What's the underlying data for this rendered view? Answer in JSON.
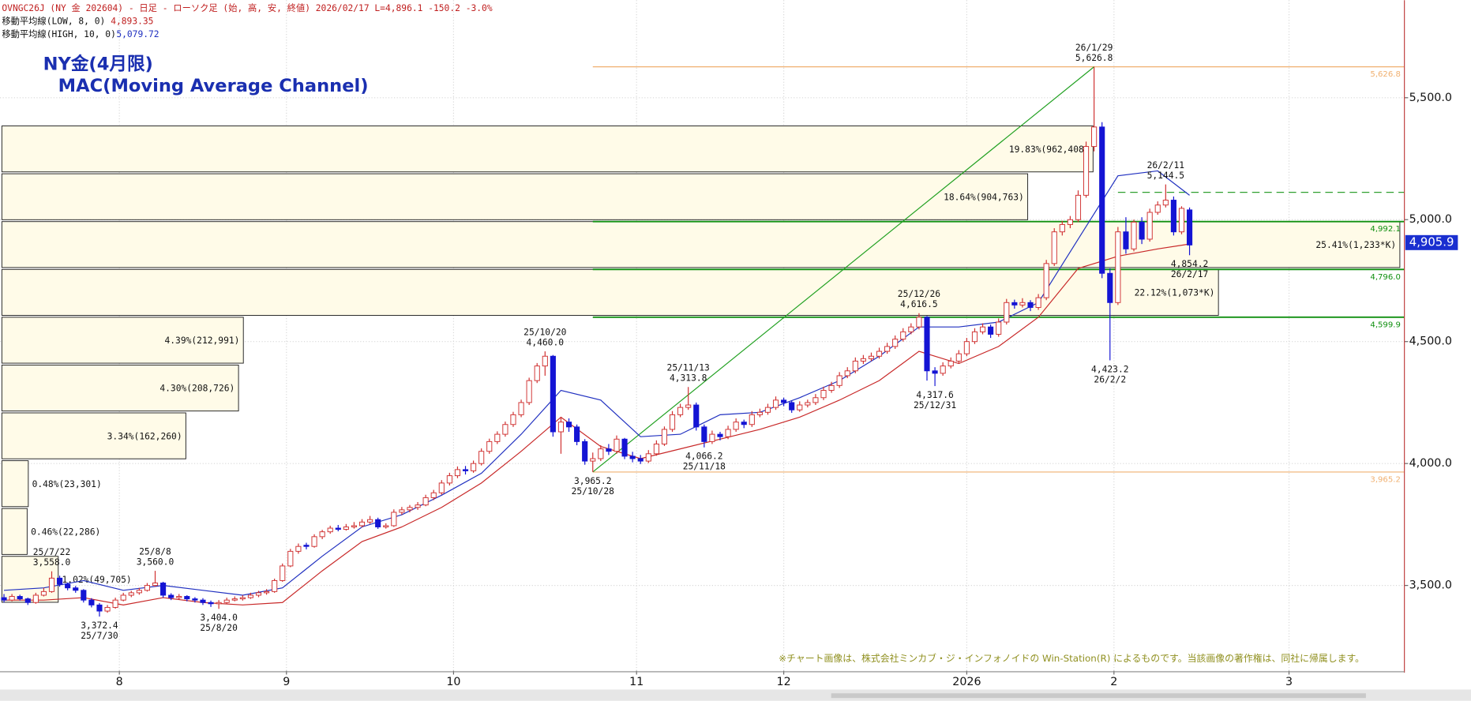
{
  "chart_data": {
    "type": "candlestick",
    "header": "OVNGC26J (NY 金 202604) - 日足 - ローソク足 (始, 高, 安, 終値)   2026/02/17 L=4,896.1 -150.2 -3.0%",
    "title": "NY金(4月限)",
    "subtitle": "MAC(Moving Average Channel)",
    "note": "※チャート画像は、株式会社ミンカブ・ジ・インフォノイドの Win-Station(R) によるものです。当該画像の著作権は、同社に帰属します。",
    "up_color": "#d03030",
    "down_color": "#1414d4",
    "xlim": [
      -0.5,
      176
    ],
    "xticks": [
      {
        "value": 14.5,
        "label": "8"
      },
      {
        "value": 35.5,
        "label": "9"
      },
      {
        "value": 56.5,
        "label": "10"
      },
      {
        "value": 79.5,
        "label": "11"
      },
      {
        "value": 98,
        "label": "12"
      },
      {
        "value": 121,
        "label": "2026"
      },
      {
        "value": 139.5,
        "label": "2"
      },
      {
        "value": 161.5,
        "label": "3"
      }
    ],
    "ylim": [
      3150,
      5900
    ],
    "yticks": [
      {
        "value": 3500,
        "label": "3,500.0"
      },
      {
        "value": 4000,
        "label": "4,000.0"
      },
      {
        "value": 4500,
        "label": "4,500.0"
      },
      {
        "value": 5000,
        "label": "5,000.0"
      },
      {
        "value": 5500,
        "label": "5,500.0"
      }
    ],
    "grid": true,
    "ohlc": [
      [
        3450,
        3465,
        3430,
        3440
      ],
      [
        3440,
        3465,
        3435,
        3455
      ],
      [
        3455,
        3462,
        3438,
        3445
      ],
      [
        3445,
        3450,
        3420,
        3430
      ],
      [
        3430,
        3470,
        3425,
        3460
      ],
      [
        3460,
        3490,
        3455,
        3475
      ],
      [
        3475,
        3558,
        3470,
        3530
      ],
      [
        3530,
        3540,
        3495,
        3505
      ],
      [
        3505,
        3512,
        3480,
        3490
      ],
      [
        3490,
        3498,
        3470,
        3480
      ],
      [
        3480,
        3485,
        3430,
        3440
      ],
      [
        3440,
        3448,
        3410,
        3420
      ],
      [
        3420,
        3428,
        3372.4,
        3395
      ],
      [
        3395,
        3420,
        3388,
        3410
      ],
      [
        3410,
        3450,
        3405,
        3440
      ],
      [
        3440,
        3470,
        3435,
        3460
      ],
      [
        3460,
        3478,
        3452,
        3470
      ],
      [
        3470,
        3490,
        3462,
        3480
      ],
      [
        3480,
        3510,
        3475,
        3500
      ],
      [
        3500,
        3560,
        3495,
        3510
      ],
      [
        3510,
        3515,
        3450,
        3460
      ],
      [
        3460,
        3468,
        3440,
        3450
      ],
      [
        3450,
        3465,
        3443,
        3455
      ],
      [
        3455,
        3460,
        3435,
        3445
      ],
      [
        3445,
        3452,
        3430,
        3440
      ],
      [
        3440,
        3448,
        3420,
        3430
      ],
      [
        3430,
        3438,
        3412,
        3425
      ],
      [
        3425,
        3440,
        3404,
        3430
      ],
      [
        3430,
        3450,
        3424,
        3440
      ],
      [
        3440,
        3455,
        3435,
        3445
      ],
      [
        3445,
        3460,
        3438,
        3450
      ],
      [
        3450,
        3470,
        3445,
        3460
      ],
      [
        3460,
        3478,
        3452,
        3470
      ],
      [
        3470,
        3485,
        3462,
        3475
      ],
      [
        3475,
        3528,
        3470,
        3520
      ],
      [
        3520,
        3590,
        3515,
        3580
      ],
      [
        3580,
        3650,
        3575,
        3640
      ],
      [
        3640,
        3672,
        3630,
        3660
      ],
      [
        3665,
        3675,
        3648,
        3660
      ],
      [
        3660,
        3710,
        3655,
        3700
      ],
      [
        3700,
        3728,
        3690,
        3720
      ],
      [
        3720,
        3745,
        3712,
        3735
      ],
      [
        3735,
        3748,
        3722,
        3730
      ],
      [
        3730,
        3752,
        3725,
        3740
      ],
      [
        3740,
        3760,
        3733,
        3745
      ],
      [
        3745,
        3772,
        3738,
        3760
      ],
      [
        3760,
        3785,
        3752,
        3770
      ],
      [
        3770,
        3778,
        3732,
        3740
      ],
      [
        3740,
        3755,
        3733,
        3745
      ],
      [
        3745,
        3812,
        3740,
        3800
      ],
      [
        3800,
        3822,
        3790,
        3810
      ],
      [
        3810,
        3830,
        3800,
        3820
      ],
      [
        3820,
        3842,
        3810,
        3830
      ],
      [
        3830,
        3872,
        3825,
        3860
      ],
      [
        3860,
        3892,
        3850,
        3880
      ],
      [
        3880,
        3932,
        3872,
        3920
      ],
      [
        3920,
        3962,
        3910,
        3950
      ],
      [
        3950,
        3988,
        3940,
        3975
      ],
      [
        3975,
        3990,
        3955,
        3970
      ],
      [
        3970,
        4012,
        3962,
        4000
      ],
      [
        4000,
        4062,
        3992,
        4050
      ],
      [
        4050,
        4102,
        4040,
        4090
      ],
      [
        4090,
        4132,
        4080,
        4120
      ],
      [
        4120,
        4172,
        4110,
        4160
      ],
      [
        4160,
        4212,
        4150,
        4200
      ],
      [
        4200,
        4262,
        4190,
        4250
      ],
      [
        4250,
        4352,
        4240,
        4340
      ],
      [
        4340,
        4412,
        4330,
        4400
      ],
      [
        4400,
        4460,
        4360,
        4440
      ],
      [
        4440,
        4445,
        4110,
        4130
      ],
      [
        4130,
        4190,
        4040,
        4170
      ],
      [
        4170,
        4185,
        4130,
        4150
      ],
      [
        4150,
        4160,
        4075,
        4090
      ],
      [
        4090,
        4100,
        3995,
        4010
      ],
      [
        4010,
        4045,
        3965.2,
        4020
      ],
      [
        4020,
        4075,
        4010,
        4060
      ],
      [
        4060,
        4080,
        4035,
        4050
      ],
      [
        4050,
        4115,
        4040,
        4100
      ],
      [
        4100,
        4105,
        4018,
        4030
      ],
      [
        4030,
        4048,
        4005,
        4020
      ],
      [
        4020,
        4035,
        3998,
        4010
      ],
      [
        4010,
        4055,
        4002,
        4040
      ],
      [
        4040,
        4095,
        4032,
        4080
      ],
      [
        4080,
        4152,
        4072,
        4140
      ],
      [
        4140,
        4215,
        4130,
        4200
      ],
      [
        4200,
        4245,
        4190,
        4230
      ],
      [
        4230,
        4313.8,
        4220,
        4240
      ],
      [
        4240,
        4250,
        4135,
        4150
      ],
      [
        4150,
        4160,
        4066.2,
        4090
      ],
      [
        4090,
        4135,
        4080,
        4120
      ],
      [
        4120,
        4130,
        4095,
        4110
      ],
      [
        4110,
        4155,
        4100,
        4140
      ],
      [
        4140,
        4185,
        4130,
        4170
      ],
      [
        4170,
        4180,
        4145,
        4160
      ],
      [
        4160,
        4215,
        4150,
        4200
      ],
      [
        4200,
        4225,
        4190,
        4210
      ],
      [
        4210,
        4245,
        4200,
        4230
      ],
      [
        4230,
        4275,
        4220,
        4260
      ],
      [
        4260,
        4270,
        4235,
        4250
      ],
      [
        4250,
        4258,
        4208,
        4220
      ],
      [
        4220,
        4255,
        4212,
        4240
      ],
      [
        4240,
        4262,
        4230,
        4250
      ],
      [
        4250,
        4285,
        4240,
        4270
      ],
      [
        4270,
        4315,
        4260,
        4300
      ],
      [
        4300,
        4335,
        4290,
        4320
      ],
      [
        4320,
        4375,
        4310,
        4360
      ],
      [
        4360,
        4395,
        4350,
        4380
      ],
      [
        4380,
        4435,
        4370,
        4420
      ],
      [
        4420,
        4445,
        4408,
        4430
      ],
      [
        4430,
        4455,
        4420,
        4440
      ],
      [
        4440,
        4475,
        4430,
        4460
      ],
      [
        4460,
        4495,
        4450,
        4480
      ],
      [
        4480,
        4525,
        4470,
        4510
      ],
      [
        4510,
        4555,
        4500,
        4540
      ],
      [
        4540,
        4575,
        4530,
        4560
      ],
      [
        4560,
        4616.5,
        4550,
        4600
      ],
      [
        4600,
        4605,
        4340,
        4380
      ],
      [
        4380,
        4395,
        4317.6,
        4370
      ],
      [
        4370,
        4415,
        4360,
        4400
      ],
      [
        4400,
        4435,
        4390,
        4420
      ],
      [
        4420,
        4465,
        4410,
        4450
      ],
      [
        4450,
        4515,
        4440,
        4500
      ],
      [
        4500,
        4555,
        4490,
        4540
      ],
      [
        4540,
        4575,
        4530,
        4560
      ],
      [
        4560,
        4570,
        4515,
        4530
      ],
      [
        4530,
        4595,
        4520,
        4580
      ],
      [
        4580,
        4675,
        4570,
        4660
      ],
      [
        4660,
        4672,
        4635,
        4650
      ],
      [
        4650,
        4678,
        4640,
        4660
      ],
      [
        4660,
        4670,
        4625,
        4640
      ],
      [
        4640,
        4695,
        4630,
        4680
      ],
      [
        4680,
        4835,
        4670,
        4820
      ],
      [
        4820,
        4965,
        4810,
        4950
      ],
      [
        4950,
        4995,
        4935,
        4980
      ],
      [
        4980,
        5015,
        4965,
        5000
      ],
      [
        5000,
        5120,
        4990,
        5100
      ],
      [
        5100,
        5320,
        5090,
        5300
      ],
      [
        5300,
        5626.8,
        5280,
        5380
      ],
      [
        5380,
        5400,
        4760,
        4780
      ],
      [
        4780,
        4800,
        4423.2,
        4660
      ],
      [
        4660,
        4970,
        4650,
        4950
      ],
      [
        4950,
        5010,
        4860,
        4880
      ],
      [
        4880,
        5000,
        4870,
        4990
      ],
      [
        4990,
        5010,
        4900,
        4920
      ],
      [
        4920,
        5045,
        4910,
        5030
      ],
      [
        5030,
        5075,
        5020,
        5060
      ],
      [
        5060,
        5144.5,
        5050,
        5080
      ],
      [
        5080,
        5095,
        4935,
        4950
      ],
      [
        4950,
        5055,
        4940,
        5046.3
      ],
      [
        5040,
        5050,
        4854.2,
        4896.1
      ]
    ],
    "series": [
      {
        "name": "移動平均線(LOW, 8, 0)",
        "latest_label": "4,893.35",
        "color": "#c82828",
        "x": [
          0,
          5,
          10,
          15,
          20,
          25,
          30,
          35,
          40,
          45,
          50,
          55,
          60,
          65,
          70,
          75,
          80,
          85,
          90,
          95,
          100,
          105,
          110,
          115,
          120,
          125,
          130,
          135,
          140,
          145,
          149
        ],
        "values": [
          3440,
          3440,
          3450,
          3420,
          3450,
          3430,
          3420,
          3430,
          3560,
          3680,
          3740,
          3820,
          3920,
          4050,
          4190,
          4070,
          4020,
          4060,
          4100,
          4140,
          4190,
          4260,
          4340,
          4460,
          4410,
          4480,
          4600,
          4800,
          4850,
          4880,
          4900
        ]
      },
      {
        "name": "移動平均線(HIGH, 10, 0)",
        "latest_label": "5,079.72",
        "color": "#2030c0",
        "x": [
          0,
          5,
          10,
          15,
          20,
          25,
          30,
          35,
          40,
          45,
          50,
          55,
          60,
          65,
          70,
          75,
          80,
          85,
          90,
          95,
          100,
          105,
          110,
          115,
          120,
          125,
          130,
          135,
          140,
          145,
          149
        ],
        "values": [
          3480,
          3490,
          3520,
          3480,
          3500,
          3480,
          3460,
          3490,
          3620,
          3740,
          3790,
          3870,
          3960,
          4120,
          4300,
          4260,
          4110,
          4120,
          4200,
          4210,
          4270,
          4340,
          4440,
          4560,
          4560,
          4580,
          4660,
          4920,
          5180,
          5200,
          5100
        ]
      }
    ],
    "annotations": [
      {
        "date": "25/7/22",
        "value": 3558.0,
        "label": "3,558.0",
        "x": 6
      },
      {
        "date": "25/7/30",
        "value": 3372.4,
        "label": "3,372.4",
        "x": 12
      },
      {
        "date": "25/8/8",
        "value": 3560.0,
        "label": "3,560.0",
        "x": 19
      },
      {
        "date": "25/8/20",
        "value": 3404.0,
        "label": "3,404.0",
        "x": 27
      },
      {
        "date": "25/10/20",
        "value": 4460.0,
        "label": "4,460.0",
        "x": 68
      },
      {
        "date": "25/10/28",
        "value": 3965.2,
        "label": "3,965.2",
        "x": 74
      },
      {
        "date": "25/11/13",
        "value": 4313.8,
        "label": "4,313.8",
        "x": 86
      },
      {
        "date": "25/11/18",
        "value": 4066.2,
        "label": "4,066.2",
        "x": 88
      },
      {
        "date": "25/12/26",
        "value": 4616.5,
        "label": "4,616.5",
        "x": 115
      },
      {
        "date": "25/12/31",
        "value": 4317.6,
        "label": "4,317.6",
        "x": 117
      },
      {
        "date": "26/1/29",
        "value": 5626.8,
        "label": "5,626.8",
        "x": 137
      },
      {
        "date": "26/2/2",
        "value": 4423.2,
        "label": "4,423.2",
        "x": 139
      },
      {
        "date": "26/2/11",
        "value": 5144.5,
        "label": "5,144.5",
        "x": 146
      },
      {
        "date": "26/2/17",
        "value": 4854.2,
        "label": "4,854.2",
        "x": 149
      }
    ],
    "levels": [
      {
        "value": 5626.8,
        "label": "5,626.8",
        "color": "#f0b070",
        "x": 74
      },
      {
        "value": 4992.1,
        "label": "4,992.1",
        "color": "#109010",
        "x": 74
      },
      {
        "value": 4796.0,
        "label": "4,796.0",
        "color": "#109010",
        "x": 74
      },
      {
        "value": 4599.9,
        "label": "4,599.9",
        "color": "#109010",
        "x": 74
      },
      {
        "value": 3965.2,
        "label": "3,965.2",
        "color": "#f0b070",
        "x": 74
      }
    ],
    "dashed_level": {
      "value": 5112,
      "x": 140,
      "color": "#30a030"
    },
    "trend_line": {
      "x": [
        74,
        137
      ],
      "values": [
        3965.2,
        5626.8
      ],
      "color": "#20a020"
    },
    "last_price": {
      "value": 4905.9,
      "label": "4,905.9",
      "color": "#1a2fd0"
    },
    "volume_profile": {
      "bins": [
        3423.3,
        3619.4,
        3815.5,
        4011.6,
        4207.7,
        4403.8,
        4599.9,
        4796.0,
        4992.1,
        5188.2,
        5384.3
      ],
      "xlim": [
        0,
        1237000
      ],
      "values": [
        49705,
        22286,
        23301,
        162260,
        208726,
        212991,
        1073000,
        1233000,
        904763,
        962408
      ],
      "value_labels": [
        "1.02%(49,705)",
        "0.46%(22,286)",
        "0.48%(23,301)",
        "3.34%(162,260)",
        "4.30%(208,726)",
        "4.39%(212,991)",
        "22.12%(1,073*K)",
        "25.41%(1,233*K)",
        "18.64%(904,763)",
        "19.83%(962,408)"
      ]
    }
  }
}
